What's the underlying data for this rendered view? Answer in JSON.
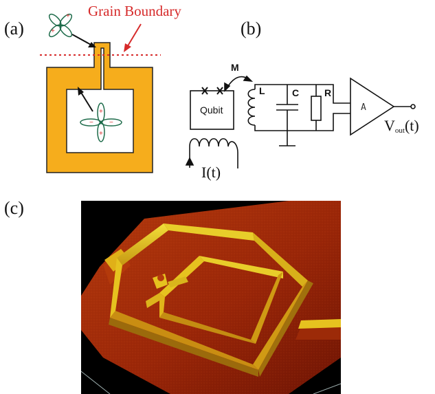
{
  "panels": {
    "a": "(a)",
    "b": "(b)",
    "c": "(c)"
  },
  "panel_a": {
    "grain_boundary_label": "Grain Boundary",
    "colors": {
      "superconductor": "#f6ad1c",
      "grain_boundary": "#d62a2a",
      "orbital": "#1d6b4a",
      "sign": "#d62a2a"
    }
  },
  "panel_b": {
    "mutual_label": "M",
    "qubit_label": "Qubit",
    "inductor_label": "L",
    "capacitor_label": "C",
    "resistor_label": "R",
    "amplifier_label": "A",
    "output_label_main": "V",
    "output_label_sub": "out",
    "output_label_tail": "(t)",
    "current_label": "I(t)"
  },
  "panel_c": {
    "colors": {
      "background": "#000000",
      "film_dark": "#8a1a06",
      "film_light": "#c8440f",
      "wall": "#e6c81c"
    }
  }
}
